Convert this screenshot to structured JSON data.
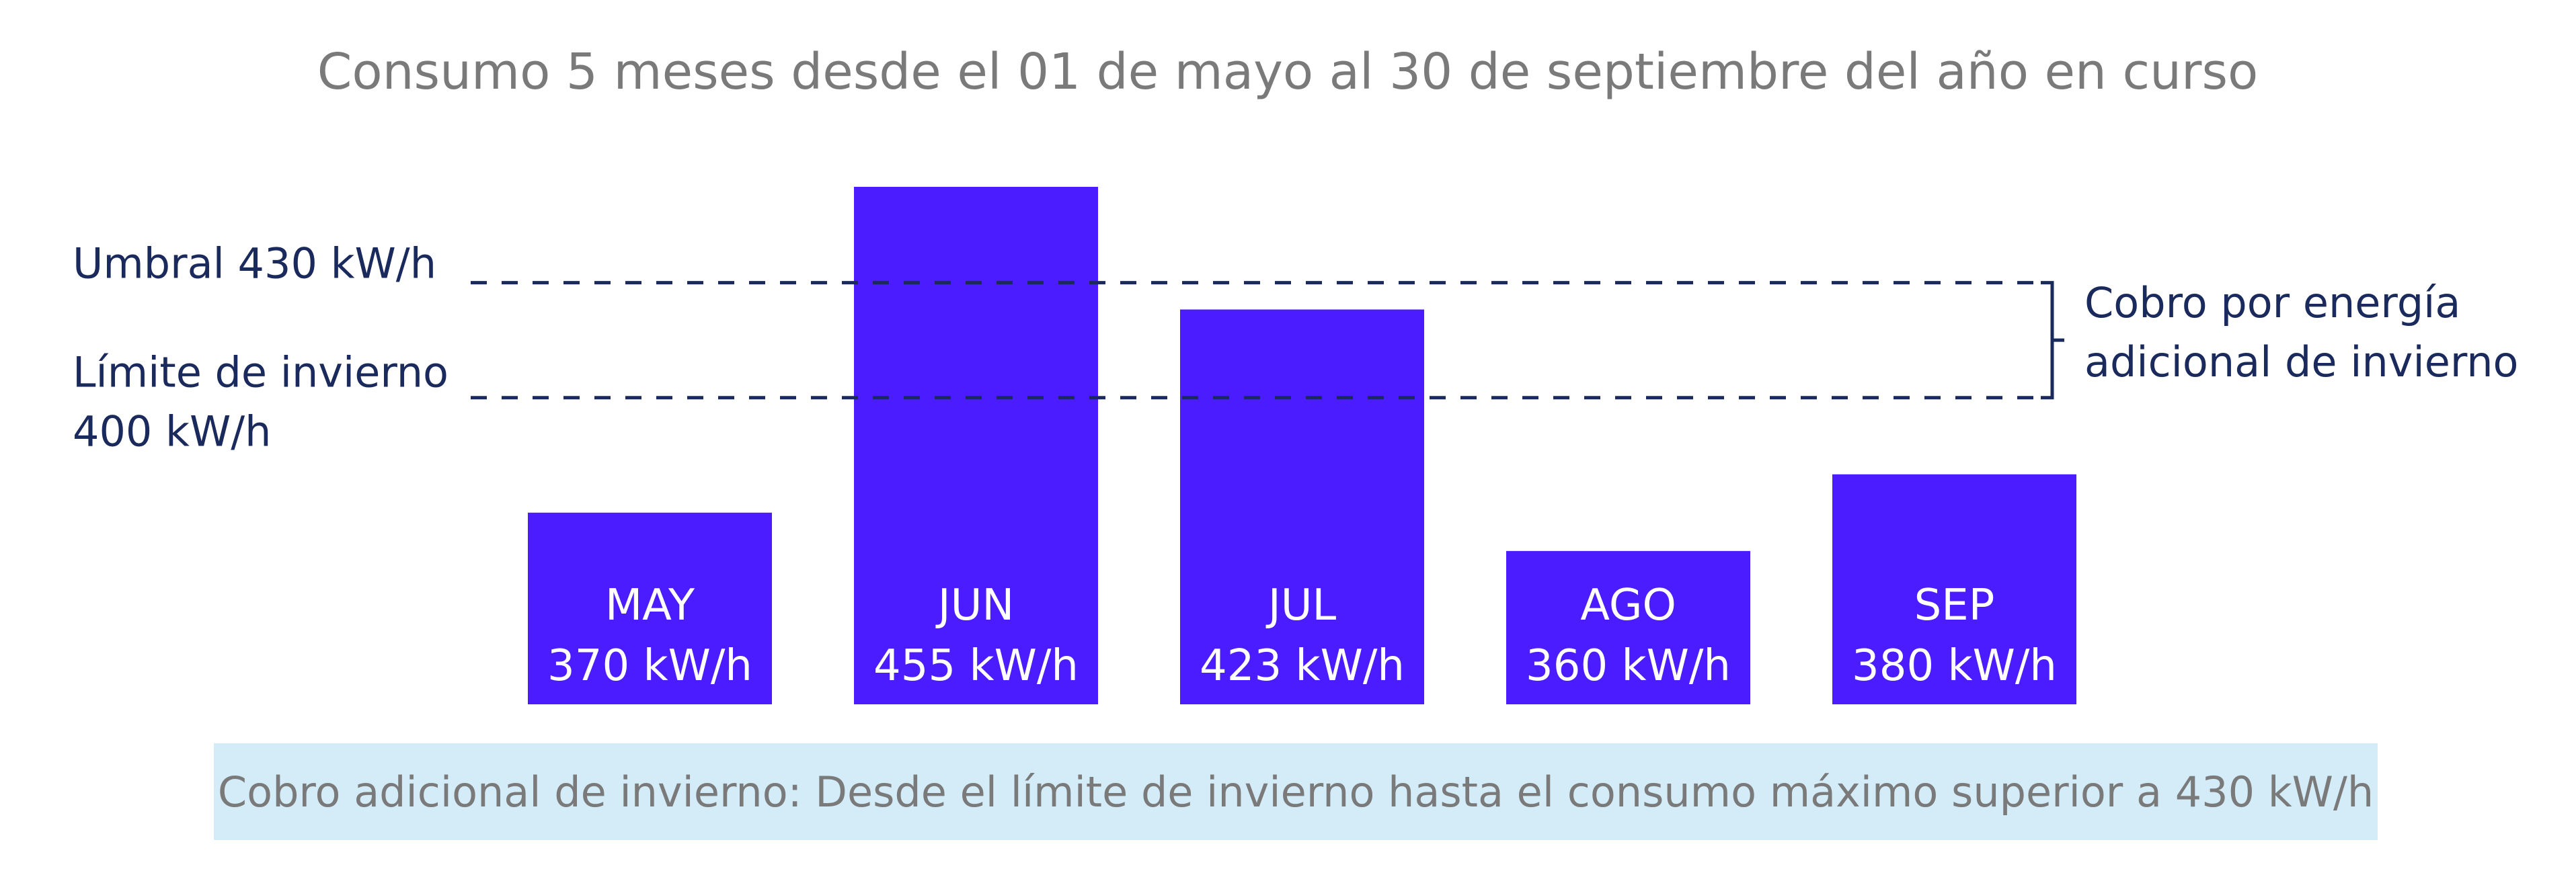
{
  "chart_data": {
    "type": "bar",
    "title": "Consumo 5 meses desde el 01 de mayo al 30 de septiembre del año en curso",
    "categories": [
      "MAY",
      "JUN",
      "JUL",
      "AGO",
      "SEP"
    ],
    "values": [
      370,
      455,
      423,
      360,
      380
    ],
    "value_labels": [
      "370 kW/h",
      "455 kW/h",
      "423 kW/h",
      "360 kW/h",
      "380 kW/h"
    ],
    "unit": "kW/h",
    "ylim": [
      320,
      455
    ],
    "bar_color": "#4a1cff",
    "reference_lines": [
      {
        "value": 430,
        "label_lines": [
          "Umbral 430 kW/h"
        ],
        "color": "#1a2a5c",
        "style": "dashed"
      },
      {
        "value": 400,
        "label_lines": [
          "Límite de invierno",
          "400 kW/h"
        ],
        "color": "#1a2a5c",
        "style": "dashed"
      }
    ],
    "bracket_annotation": {
      "from_value": 400,
      "to_value": 430,
      "label_lines": [
        "Cobro por energía",
        "adicional de invierno"
      ]
    },
    "footer_note": {
      "text": "Cobro adicional de invierno: Desde el límite de invierno hasta el consumo máximo superior a 430 kW/h",
      "background": "#d3ecf8"
    },
    "grid": false,
    "legend": "none"
  }
}
